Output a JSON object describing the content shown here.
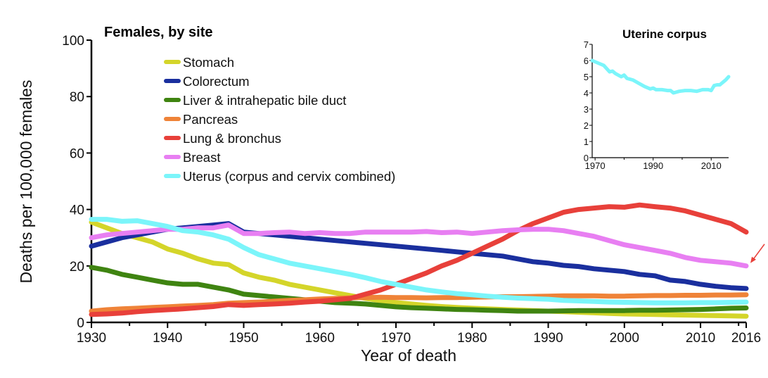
{
  "chart_data": [
    {
      "type": "line",
      "title": "Females, by site",
      "xlabel": "Year of death",
      "ylabel": "Deaths per 100,000 females",
      "xlim": [
        1930,
        2016
      ],
      "ylim": [
        0,
        100
      ],
      "xticks": [
        1930,
        1940,
        1950,
        1960,
        1970,
        1980,
        1990,
        2000,
        2010,
        2016
      ],
      "xtick_labels": [
        "1930",
        "1940",
        "1950",
        "1960",
        "1970",
        "1980",
        "1990",
        "2000",
        "2010",
        "2016"
      ],
      "yticks": [
        0,
        20,
        40,
        60,
        80,
        100
      ],
      "ytick_labels": [
        "0",
        "20",
        "40",
        "60",
        "80",
        "100"
      ],
      "grid": false,
      "legend_position": "top-left",
      "x": [
        1930,
        1932,
        1934,
        1936,
        1938,
        1940,
        1942,
        1944,
        1946,
        1948,
        1950,
        1952,
        1954,
        1956,
        1958,
        1960,
        1962,
        1964,
        1966,
        1968,
        1970,
        1972,
        1974,
        1976,
        1978,
        1980,
        1982,
        1984,
        1986,
        1988,
        1990,
        1992,
        1994,
        1996,
        1998,
        2000,
        2002,
        2004,
        2006,
        2008,
        2010,
        2012,
        2014,
        2016
      ],
      "series": [
        {
          "name": "Stomach",
          "color": "#d4d52a",
          "values": [
            35.5,
            33.5,
            31.5,
            30.0,
            28.5,
            26.0,
            24.5,
            22.5,
            21.0,
            20.5,
            17.5,
            16.0,
            15.0,
            13.5,
            12.5,
            11.5,
            10.5,
            9.5,
            8.5,
            7.7,
            7.0,
            6.5,
            6.0,
            5.6,
            5.3,
            5.0,
            4.8,
            4.6,
            4.4,
            4.2,
            4.0,
            3.8,
            3.6,
            3.4,
            3.2,
            3.0,
            2.9,
            2.8,
            2.7,
            2.6,
            2.5,
            2.4,
            2.3,
            2.2
          ]
        },
        {
          "name": "Colorectum",
          "color": "#1a2f9e",
          "values": [
            27.0,
            28.5,
            30.0,
            31.0,
            32.0,
            33.0,
            33.5,
            34.0,
            34.5,
            35.0,
            32.0,
            31.5,
            31.0,
            30.5,
            30.0,
            29.5,
            29.0,
            28.5,
            28.0,
            27.5,
            27.0,
            26.5,
            26.0,
            25.5,
            25.0,
            24.5,
            24.0,
            23.5,
            22.5,
            21.5,
            21.0,
            20.2,
            19.8,
            19.0,
            18.5,
            18.0,
            17.0,
            16.5,
            15.0,
            14.5,
            13.5,
            12.8,
            12.3,
            12.0
          ]
        },
        {
          "name": "Liver & intrahepatic bile duct",
          "color": "#3f8411",
          "values": [
            19.5,
            18.5,
            17.0,
            16.0,
            15.0,
            14.0,
            13.5,
            13.5,
            12.5,
            11.5,
            10.0,
            9.5,
            9.0,
            8.5,
            8.0,
            7.5,
            7.0,
            6.8,
            6.5,
            6.0,
            5.5,
            5.2,
            5.0,
            4.8,
            4.6,
            4.5,
            4.3,
            4.2,
            4.0,
            4.0,
            4.0,
            4.1,
            4.2,
            4.2,
            4.2,
            4.2,
            4.3,
            4.3,
            4.4,
            4.5,
            4.6,
            4.8,
            5.0,
            5.1
          ]
        },
        {
          "name": "Pancreas",
          "color": "#ef8338",
          "values": [
            4.0,
            4.5,
            4.8,
            5.0,
            5.3,
            5.5,
            5.8,
            6.0,
            6.3,
            6.8,
            7.0,
            7.2,
            7.5,
            7.8,
            8.0,
            8.3,
            8.5,
            8.7,
            8.8,
            8.9,
            8.8,
            8.8,
            8.7,
            8.8,
            8.8,
            8.9,
            9.0,
            9.1,
            9.1,
            9.2,
            9.3,
            9.4,
            9.4,
            9.4,
            9.3,
            9.3,
            9.4,
            9.5,
            9.5,
            9.6,
            9.6,
            9.7,
            9.7,
            9.8
          ]
        },
        {
          "name": "Lung & bronchus",
          "color": "#e8403a",
          "values": [
            2.8,
            3.0,
            3.3,
            3.8,
            4.2,
            4.5,
            4.8,
            5.2,
            5.6,
            6.3,
            6.0,
            6.3,
            6.5,
            6.8,
            7.2,
            7.5,
            8.0,
            8.5,
            10.0,
            11.5,
            13.5,
            15.5,
            17.5,
            20.0,
            22.0,
            24.5,
            27.0,
            29.5,
            32.5,
            35.0,
            37.0,
            39.0,
            40.0,
            40.5,
            41.0,
            40.8,
            41.6,
            41.0,
            40.5,
            39.5,
            38.0,
            36.5,
            35.0,
            32.0
          ]
        },
        {
          "name": "Breast",
          "color": "#e87ff2",
          "values": [
            30.0,
            31.0,
            31.5,
            32.0,
            32.5,
            33.0,
            33.0,
            33.5,
            33.5,
            34.5,
            31.5,
            31.5,
            31.8,
            32.0,
            31.5,
            31.8,
            31.5,
            31.5,
            32.0,
            32.0,
            32.0,
            32.0,
            32.2,
            31.8,
            32.0,
            31.5,
            32.0,
            32.5,
            32.8,
            33.0,
            33.0,
            32.5,
            31.5,
            30.5,
            29.0,
            27.5,
            26.5,
            25.5,
            24.5,
            23.0,
            22.0,
            21.5,
            21.0,
            20.0
          ]
        },
        {
          "name": "Uterus (corpus and cervix combined)",
          "color": "#7bf5fa",
          "values": [
            36.5,
            36.5,
            35.8,
            36.0,
            35.0,
            34.0,
            32.5,
            32.0,
            31.0,
            29.5,
            26.5,
            24.0,
            22.5,
            21.0,
            20.0,
            19.0,
            18.0,
            17.0,
            15.8,
            14.5,
            13.5,
            12.5,
            11.5,
            10.8,
            10.2,
            9.8,
            9.3,
            8.9,
            8.6,
            8.4,
            8.2,
            7.8,
            7.6,
            7.4,
            7.2,
            7.1,
            7.0,
            6.9,
            6.9,
            6.9,
            7.0,
            7.0,
            7.1,
            7.2
          ]
        }
      ],
      "annotations": [
        {
          "type": "arrow",
          "color": "#e8403a",
          "target_series": "Breast",
          "target_x": 2016
        }
      ]
    },
    {
      "type": "line",
      "title": "Uterine corpus",
      "xlim": [
        1969,
        2016
      ],
      "ylim": [
        0,
        7
      ],
      "xticks": [
        1970,
        1990,
        2010
      ],
      "xtick_labels": [
        "1970",
        "1990",
        "2010"
      ],
      "minor_xticks": [
        1980,
        2000
      ],
      "yticks": [
        0,
        1,
        2,
        3,
        4,
        5,
        6,
        7
      ],
      "ytick_labels": [
        "0",
        "1",
        "2",
        "3",
        "4",
        "5",
        "6",
        "7"
      ],
      "grid": false,
      "legend_position": "none",
      "x": [
        1969,
        1971,
        1973,
        1975,
        1976,
        1977,
        1979,
        1980,
        1981,
        1983,
        1985,
        1987,
        1989,
        1990,
        1991,
        1993,
        1995,
        1996,
        1997,
        1999,
        2001,
        2003,
        2005,
        2006,
        2007,
        2009,
        2010,
        2011,
        2012,
        2013,
        2014,
        2015,
        2016
      ],
      "series": [
        {
          "name": "Uterine corpus",
          "color": "#7bf5fa",
          "values": [
            6.0,
            5.85,
            5.7,
            5.3,
            5.35,
            5.2,
            5.0,
            5.1,
            4.9,
            4.8,
            4.6,
            4.4,
            4.25,
            4.3,
            4.2,
            4.2,
            4.15,
            4.15,
            4.0,
            4.1,
            4.15,
            4.15,
            4.1,
            4.15,
            4.2,
            4.2,
            4.15,
            4.45,
            4.5,
            4.5,
            4.65,
            4.8,
            5.0
          ]
        }
      ]
    }
  ]
}
